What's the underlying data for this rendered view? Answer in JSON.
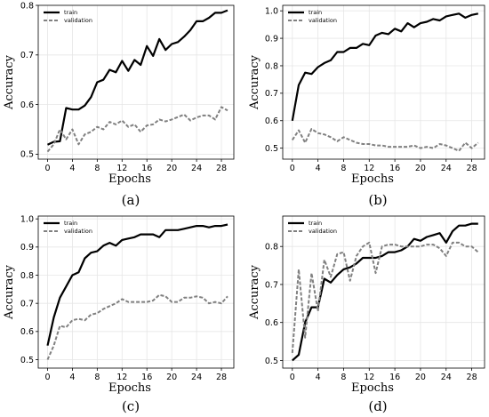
{
  "chart_data": [
    {
      "type": "line",
      "panel_label": "(a)",
      "xlabel": "Epochs",
      "ylabel": "Accuracy",
      "xlim": [
        -1.5,
        30
      ],
      "ylim": [
        0.49,
        0.8
      ],
      "xticks": [
        0,
        4,
        8,
        12,
        16,
        20,
        24,
        28
      ],
      "yticks": [
        0.5,
        0.6,
        0.7,
        0.8
      ],
      "ytick_labels": [
        "0.5",
        "0.6",
        "0.7",
        "0.8"
      ],
      "grid": true,
      "legend": "top-left",
      "x": [
        0,
        1,
        2,
        3,
        4,
        5,
        6,
        7,
        8,
        9,
        10,
        11,
        12,
        13,
        14,
        15,
        16,
        17,
        18,
        19,
        20,
        21,
        22,
        23,
        24,
        25,
        26,
        27,
        28,
        29
      ],
      "series": [
        {
          "name": "train",
          "values": [
            0.519,
            0.525,
            0.526,
            0.593,
            0.59,
            0.59,
            0.598,
            0.615,
            0.645,
            0.65,
            0.67,
            0.665,
            0.688,
            0.668,
            0.69,
            0.68,
            0.718,
            0.698,
            0.732,
            0.71,
            0.722,
            0.726,
            0.737,
            0.75,
            0.768,
            0.768,
            0.775,
            0.785,
            0.785,
            0.79
          ]
        },
        {
          "name": "validation",
          "values": [
            0.505,
            0.52,
            0.55,
            0.53,
            0.55,
            0.52,
            0.54,
            0.545,
            0.555,
            0.55,
            0.565,
            0.56,
            0.568,
            0.555,
            0.56,
            0.545,
            0.558,
            0.56,
            0.57,
            0.566,
            0.57,
            0.575,
            0.58,
            0.568,
            0.574,
            0.578,
            0.578,
            0.57,
            0.595,
            0.588
          ]
        }
      ]
    },
    {
      "type": "line",
      "panel_label": "(b)",
      "xlabel": "Epochs",
      "ylabel": "Accuracy",
      "xlim": [
        -1.5,
        30
      ],
      "ylim": [
        0.46,
        1.02
      ],
      "xticks": [
        0,
        4,
        8,
        12,
        16,
        20,
        24,
        28
      ],
      "yticks": [
        0.5,
        0.6,
        0.7,
        0.8,
        0.9,
        1.0
      ],
      "ytick_labels": [
        "0.5",
        "0.6",
        "0.7",
        "0.8",
        "0.9",
        "1.0"
      ],
      "grid": true,
      "legend": "top-left",
      "x": [
        0,
        1,
        2,
        3,
        4,
        5,
        6,
        7,
        8,
        9,
        10,
        11,
        12,
        13,
        14,
        15,
        16,
        17,
        18,
        19,
        20,
        21,
        22,
        23,
        24,
        25,
        26,
        27,
        28,
        29
      ],
      "series": [
        {
          "name": "train",
          "values": [
            0.6,
            0.73,
            0.775,
            0.77,
            0.795,
            0.81,
            0.82,
            0.85,
            0.85,
            0.865,
            0.865,
            0.88,
            0.875,
            0.91,
            0.92,
            0.915,
            0.935,
            0.925,
            0.955,
            0.94,
            0.955,
            0.96,
            0.97,
            0.965,
            0.98,
            0.985,
            0.99,
            0.975,
            0.985,
            0.99
          ]
        },
        {
          "name": "validation",
          "values": [
            0.53,
            0.565,
            0.52,
            0.57,
            0.555,
            0.55,
            0.54,
            0.525,
            0.54,
            0.53,
            0.52,
            0.515,
            0.515,
            0.51,
            0.51,
            0.505,
            0.505,
            0.505,
            0.505,
            0.51,
            0.5,
            0.505,
            0.5,
            0.515,
            0.51,
            0.5,
            0.49,
            0.52,
            0.5,
            0.52
          ]
        }
      ]
    },
    {
      "type": "line",
      "panel_label": "(c)",
      "xlabel": "Epochs",
      "ylabel": "Accuracy",
      "xlim": [
        -1.5,
        30
      ],
      "ylim": [
        0.47,
        1.01
      ],
      "xticks": [
        0,
        4,
        8,
        12,
        16,
        20,
        24,
        28
      ],
      "yticks": [
        0.5,
        0.6,
        0.7,
        0.8,
        0.9,
        1.0
      ],
      "ytick_labels": [
        "0.5",
        "0.6",
        "0.7",
        "0.8",
        "0.9",
        "1.0"
      ],
      "grid": true,
      "legend": "top-left",
      "x": [
        0,
        1,
        2,
        3,
        4,
        5,
        6,
        7,
        8,
        9,
        10,
        11,
        12,
        13,
        14,
        15,
        16,
        17,
        18,
        19,
        20,
        21,
        22,
        23,
        24,
        25,
        26,
        27,
        28,
        29
      ],
      "series": [
        {
          "name": "train",
          "values": [
            0.55,
            0.65,
            0.72,
            0.76,
            0.8,
            0.81,
            0.86,
            0.88,
            0.885,
            0.905,
            0.915,
            0.905,
            0.925,
            0.93,
            0.935,
            0.945,
            0.945,
            0.945,
            0.935,
            0.96,
            0.96,
            0.96,
            0.965,
            0.97,
            0.975,
            0.975,
            0.97,
            0.975,
            0.975,
            0.98
          ]
        },
        {
          "name": "validation",
          "values": [
            0.5,
            0.55,
            0.62,
            0.615,
            0.64,
            0.645,
            0.64,
            0.66,
            0.665,
            0.68,
            0.69,
            0.7,
            0.715,
            0.705,
            0.705,
            0.705,
            0.705,
            0.71,
            0.73,
            0.725,
            0.705,
            0.705,
            0.72,
            0.72,
            0.725,
            0.72,
            0.7,
            0.705,
            0.7,
            0.725
          ]
        }
      ]
    },
    {
      "type": "line",
      "panel_label": "(d)",
      "xlabel": "Epochs",
      "ylabel": "Accuracy",
      "xlim": [
        -1.5,
        30
      ],
      "ylim": [
        0.48,
        0.88
      ],
      "xticks": [
        0,
        4,
        8,
        12,
        16,
        20,
        24,
        28
      ],
      "yticks": [
        0.5,
        0.6,
        0.7,
        0.8
      ],
      "ytick_labels": [
        "0.5",
        "0.6",
        "0.7",
        "0.8"
      ],
      "grid": true,
      "legend": "top-left",
      "x": [
        0,
        1,
        2,
        3,
        4,
        5,
        6,
        7,
        8,
        9,
        10,
        11,
        12,
        13,
        14,
        15,
        16,
        17,
        18,
        19,
        20,
        21,
        22,
        23,
        24,
        25,
        26,
        27,
        28,
        29
      ],
      "series": [
        {
          "name": "train",
          "values": [
            0.5,
            0.515,
            0.6,
            0.64,
            0.64,
            0.715,
            0.705,
            0.725,
            0.74,
            0.745,
            0.755,
            0.77,
            0.77,
            0.77,
            0.775,
            0.785,
            0.785,
            0.79,
            0.8,
            0.82,
            0.815,
            0.825,
            0.83,
            0.835,
            0.81,
            0.84,
            0.855,
            0.855,
            0.86,
            0.86
          ]
        },
        {
          "name": "validation",
          "values": [
            0.52,
            0.74,
            0.56,
            0.73,
            0.63,
            0.765,
            0.72,
            0.78,
            0.785,
            0.71,
            0.775,
            0.8,
            0.81,
            0.73,
            0.8,
            0.805,
            0.805,
            0.8,
            0.8,
            0.8,
            0.8,
            0.805,
            0.805,
            0.795,
            0.775,
            0.81,
            0.81,
            0.8,
            0.8,
            0.785
          ]
        }
      ]
    }
  ]
}
